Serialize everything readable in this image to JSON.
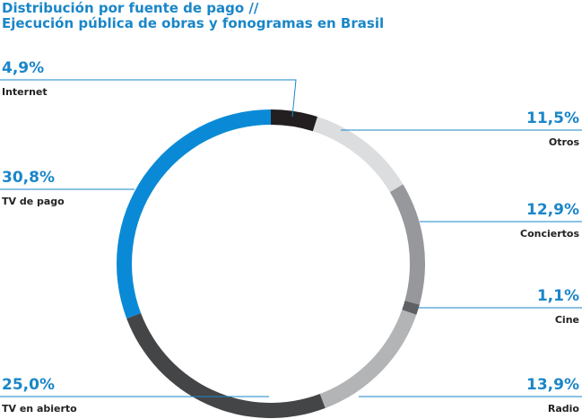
{
  "chart_data": {
    "type": "donut",
    "title": [
      "Distribución por fuente de pago //",
      "Ejecución pública de obras y fonogramas en Brasil"
    ],
    "categories": [
      "Internet",
      "Otros",
      "Conciertos",
      "Cine",
      "Radio",
      "TV en abierto",
      "TV de pago"
    ],
    "values": [
      4.9,
      11.5,
      12.9,
      1.1,
      13.9,
      25.0,
      30.8
    ],
    "value_labels": [
      "4,9%",
      "11,5%",
      "12,9%",
      "1,1%",
      "13,9%",
      "25,0%",
      "30,8%"
    ],
    "colors": [
      "#231f20",
      "#dcdddf",
      "#97989b",
      "#5f6063",
      "#b3b4b6",
      "#444547",
      "#0a8ad6"
    ]
  }
}
